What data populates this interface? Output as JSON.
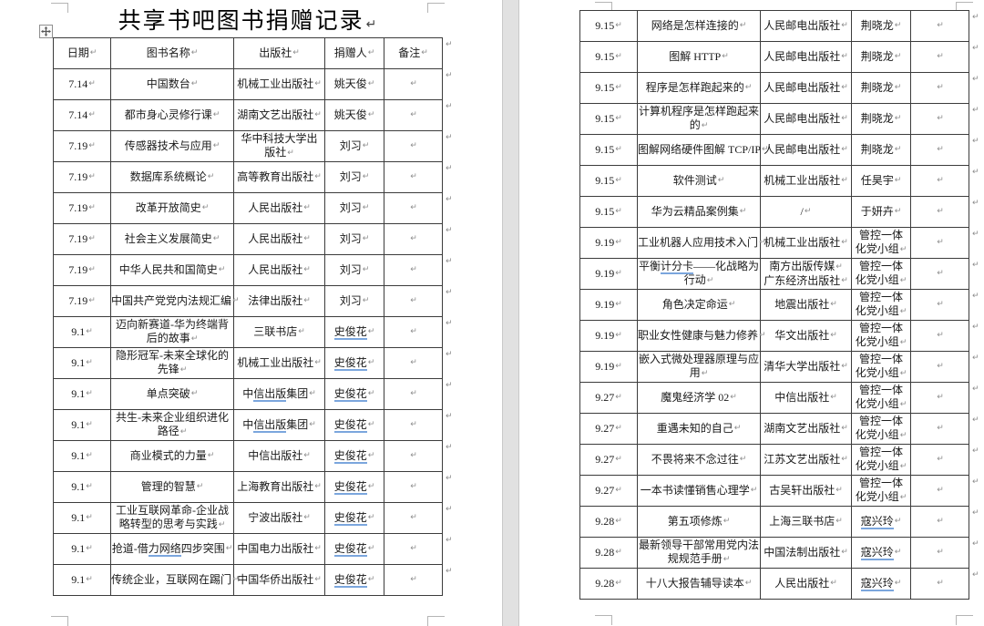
{
  "document": {
    "title": "共享书吧图书捐赠记录",
    "columns": [
      "日期",
      "图书名称",
      "出版社",
      "捐赠人",
      "备注"
    ],
    "pages": [
      {
        "label": "page-1",
        "has_header": true,
        "rows": [
          {
            "date": "7.14",
            "book": "中国数台",
            "publisher": "机械工业出版社",
            "donor": "姚天俊",
            "note": ""
          },
          {
            "date": "7.14",
            "book": "都市身心灵修行课",
            "publisher": "湖南文艺出版社",
            "donor": "姚天俊",
            "note": ""
          },
          {
            "date": "7.19",
            "book": "传感器技术与应用",
            "publisher": [
              {
                "t": "华中科技大学出"
              },
              {
                "br": true
              },
              {
                "t": "版社"
              }
            ],
            "donor": "刘习",
            "note": ""
          },
          {
            "date": "7.19",
            "book": "数据库系统概论",
            "publisher": "高等教育出版社",
            "donor": "刘习",
            "note": ""
          },
          {
            "date": "7.19",
            "book": "改革开放简史",
            "publisher": "人民出版社",
            "donor": "刘习",
            "note": ""
          },
          {
            "date": "7.19",
            "book": "社会主义发展简史",
            "publisher": "人民出版社",
            "donor": "刘习",
            "note": ""
          },
          {
            "date": "7.19",
            "book": "中华人民共和国简史",
            "publisher": "人民出版社",
            "donor": "刘习",
            "note": ""
          },
          {
            "date": "7.19",
            "book": "中国共产党党内法规汇编",
            "publisher": "法律出版社",
            "donor": "刘习",
            "note": ""
          },
          {
            "date": "9.1",
            "book": [
              {
                "t": "迈向新赛道-华为终端背"
              },
              {
                "br": true
              },
              {
                "t": "后的故事"
              }
            ],
            "publisher": "三联书店",
            "donor": [
              {
                "t": "史俊花",
                "u": true
              }
            ],
            "note": ""
          },
          {
            "date": "9.1",
            "book": [
              {
                "t": "隐形冠军-未来全球化的"
              },
              {
                "br": true
              },
              {
                "t": "先锋"
              }
            ],
            "publisher": "机械工业出版社",
            "donor": [
              {
                "t": "史俊花",
                "u": true
              }
            ],
            "note": ""
          },
          {
            "date": "9.1",
            "book": "单点突破",
            "publisher": [
              {
                "t": "中"
              },
              {
                "t": "信出版",
                "u": true
              },
              {
                "t": "集团"
              }
            ],
            "donor": [
              {
                "t": "史俊花",
                "u": true
              }
            ],
            "note": ""
          },
          {
            "date": "9.1",
            "book": [
              {
                "t": "共生-未来企业组织进化"
              },
              {
                "br": true
              },
              {
                "t": "路径"
              }
            ],
            "publisher": [
              {
                "t": "中"
              },
              {
                "t": "信出版",
                "u": true
              },
              {
                "t": "集团"
              }
            ],
            "donor": [
              {
                "t": "史俊花",
                "u": true
              }
            ],
            "note": ""
          },
          {
            "date": "9.1",
            "book": "商业模式的力量",
            "publisher": "中信出版社",
            "donor": [
              {
                "t": "史俊花",
                "u": true
              }
            ],
            "note": ""
          },
          {
            "date": "9.1",
            "book": "管理的智慧",
            "publisher": "上海教育出版社",
            "donor": [
              {
                "t": "史俊花",
                "u": true
              }
            ],
            "note": ""
          },
          {
            "date": "9.1",
            "book": [
              {
                "t": "工业互联网革命-企业战"
              },
              {
                "br": true
              },
              {
                "t": "略转型的思考与实践"
              }
            ],
            "publisher": "宁波出版社",
            "donor": [
              {
                "t": "史俊花",
                "u": true
              }
            ],
            "note": ""
          },
          {
            "date": "9.1",
            "book": [
              {
                "t": "抢道-借"
              },
              {
                "t": "力网络",
                "u": true
              },
              {
                "t": "四步突围"
              }
            ],
            "publisher": "中国电力出版社",
            "donor": [
              {
                "t": "史俊花",
                "u": true
              }
            ],
            "note": ""
          },
          {
            "date": "9.1",
            "book": "传统企业，互联网在踢门",
            "publisher": "中国华侨出版社",
            "donor": [
              {
                "t": "史俊花",
                "u": true
              }
            ],
            "note": ""
          }
        ]
      },
      {
        "label": "page-2",
        "has_header": false,
        "rows": [
          {
            "date": "9.15",
            "book": "网络是怎样连接的",
            "publisher": "人民邮电出版社",
            "donor": "荆晓龙",
            "note": ""
          },
          {
            "date": "9.15",
            "book": "图解 HTTP",
            "publisher": "人民邮电出版社",
            "donor": "荆晓龙",
            "note": ""
          },
          {
            "date": "9.15",
            "book": "程序是怎样跑起来的",
            "publisher": "人民邮电出版社",
            "donor": "荆晓龙",
            "note": ""
          },
          {
            "date": "9.15",
            "book": [
              {
                "t": "计算机程序是怎样跑起来"
              },
              {
                "br": true
              },
              {
                "t": "的"
              }
            ],
            "publisher": "人民邮电出版社",
            "donor": "荆晓龙",
            "note": ""
          },
          {
            "date": "9.15",
            "book": "图解网络硬件图解 TCP/IP",
            "publisher": "人民邮电出版社",
            "donor": "荆晓龙",
            "note": ""
          },
          {
            "date": "9.15",
            "book": "软件测试",
            "publisher": "机械工业出版社",
            "donor": "任昊宇",
            "note": ""
          },
          {
            "date": "9.15",
            "book": "华为云精品案例集",
            "publisher": "/",
            "donor": "于妍卉",
            "note": ""
          },
          {
            "date": "9.19",
            "book": "工业机器人应用技术入门",
            "publisher": "机械工业出版社",
            "donor": [
              {
                "t": "管控一体"
              },
              {
                "br": true
              },
              {
                "t": "化党小组"
              }
            ],
            "note": ""
          },
          {
            "date": "9.19",
            "book": [
              {
                "t": "平衡"
              },
              {
                "t": "计分卡",
                "u": true
              },
              {
                "t": "——化战略为"
              },
              {
                "br": true
              },
              {
                "t": "行动"
              }
            ],
            "publisher": [
              {
                "t": "南方出版传媒"
              },
              {
                "m": true
              },
              {
                "br": true
              },
              {
                "t": "广东经济出版社"
              }
            ],
            "donor": [
              {
                "t": "管控一体"
              },
              {
                "br": true
              },
              {
                "t": "化党小组"
              }
            ],
            "note": ""
          },
          {
            "date": "9.19",
            "book": "角色决定命运",
            "publisher": "地震出版社",
            "donor": [
              {
                "t": "管控一体"
              },
              {
                "br": true
              },
              {
                "t": "化党小组"
              }
            ],
            "note": ""
          },
          {
            "date": "9.19",
            "book": "职业女性健康与魅力修养",
            "publisher": "华文出版社",
            "donor": [
              {
                "t": "管控一体"
              },
              {
                "br": true
              },
              {
                "t": "化党小组"
              }
            ],
            "note": ""
          },
          {
            "date": "9.19",
            "book": [
              {
                "t": "嵌入式微处理器原理与应"
              },
              {
                "br": true
              },
              {
                "t": "用"
              }
            ],
            "publisher": "清华大学出版社",
            "donor": [
              {
                "t": "管控一体"
              },
              {
                "br": true
              },
              {
                "t": "化党小组"
              }
            ],
            "note": ""
          },
          {
            "date": "9.27",
            "book": "魔鬼经济学 02",
            "publisher": "中信出版社",
            "donor": [
              {
                "t": "管控一体"
              },
              {
                "br": true
              },
              {
                "t": "化党小组"
              }
            ],
            "note": ""
          },
          {
            "date": "9.27",
            "book": "重遇未知的自己",
            "publisher": "湖南文艺出版社",
            "donor": [
              {
                "t": "管控一体"
              },
              {
                "br": true
              },
              {
                "t": "化党小组"
              }
            ],
            "note": ""
          },
          {
            "date": "9.27",
            "book": "不畏将来不念过往",
            "publisher": "江苏文艺出版社",
            "donor": [
              {
                "t": "管控一体"
              },
              {
                "br": true
              },
              {
                "t": "化党小组"
              }
            ],
            "note": ""
          },
          {
            "date": "9.27",
            "book": "一本书读懂销售心理学",
            "publisher": "古吴轩出版社",
            "donor": [
              {
                "t": "管控一体"
              },
              {
                "br": true
              },
              {
                "t": "化党小组"
              }
            ],
            "note": ""
          },
          {
            "date": "9.28",
            "book": "第五项修炼",
            "publisher": "上海三联书店",
            "donor": [
              {
                "t": "寇兴玲",
                "u": true
              }
            ],
            "note": ""
          },
          {
            "date": "9.28",
            "book": [
              {
                "t": "最新领导干部常用党内法"
              },
              {
                "br": true
              },
              {
                "t": "规规范手册"
              }
            ],
            "publisher": "中国法制出版社",
            "donor": [
              {
                "t": "寇兴玲",
                "u": true
              }
            ],
            "note": ""
          },
          {
            "date": "9.28",
            "book": "十八大报告辅导读本",
            "publisher": "人民出版社",
            "donor": [
              {
                "t": "寇兴玲",
                "u": true
              }
            ],
            "note": ""
          }
        ]
      }
    ]
  },
  "marks": {
    "cell": "↵",
    "row": "↵",
    "paragraph": "↵"
  },
  "icons": {
    "table_move_handle": "four-way-move-cross"
  },
  "colors": {
    "page_background": "#ffffff",
    "canvas_background": "#e1e1e1",
    "table_border": "#3c3c3c",
    "text": "#1a1a1a",
    "formatting_mark": "#8c8c8c",
    "proofing_underline": "#7ba6dd",
    "crop_mark": "#b5b5b5"
  }
}
